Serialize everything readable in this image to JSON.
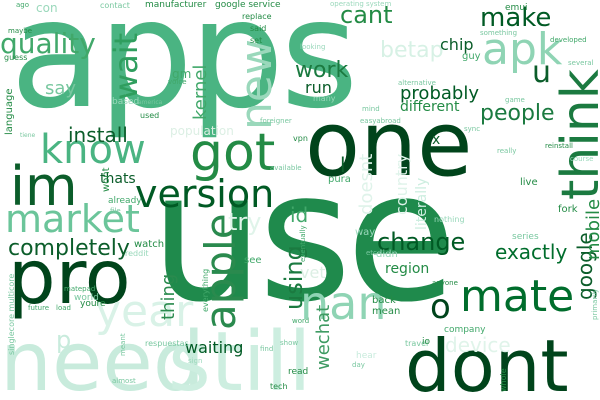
{
  "words": [
    {
      "text": "apps",
      "color": "#4ab482",
      "rot": false
    },
    {
      "text": "use",
      "color": "#1f8a4c",
      "rot": false
    },
    {
      "text": "one",
      "color": "#00441b",
      "rot": false
    },
    {
      "text": "need",
      "color": "#c8ebdc",
      "rot": false
    },
    {
      "text": "still",
      "color": "#cdeee0",
      "rot": false
    },
    {
      "text": "dont",
      "color": "#00441b",
      "rot": false
    },
    {
      "text": "pro",
      "color": "#00441b",
      "rot": false
    },
    {
      "text": "mate",
      "color": "#006d2c",
      "rot": false
    },
    {
      "text": "think",
      "color": "#1b7a40",
      "rot": true
    },
    {
      "text": "im",
      "color": "#0b5d2a",
      "rot": false
    },
    {
      "text": "got",
      "color": "#238b45",
      "rot": false
    },
    {
      "text": "version",
      "color": "#005a24",
      "rot": false
    },
    {
      "text": "know",
      "color": "#4ab482",
      "rot": false
    },
    {
      "text": "market",
      "color": "#6bc59a",
      "rot": false
    },
    {
      "text": "apple",
      "color": "#2a8a4e",
      "rot": true
    },
    {
      "text": "nan",
      "color": "#8fd4b4",
      "rot": false
    },
    {
      "text": "change",
      "color": "#005a24",
      "rot": false
    },
    {
      "text": "apk",
      "color": "#8fd4b4",
      "rot": false
    },
    {
      "text": "quality",
      "color": "#41a86a",
      "rot": false
    },
    {
      "text": "wait",
      "color": "#2f9e5e",
      "rot": true
    },
    {
      "text": "new",
      "color": "#9ad8bb",
      "rot": true
    },
    {
      "text": "make",
      "color": "#005a24",
      "rot": false
    },
    {
      "text": "cant",
      "color": "#238b45",
      "rot": false
    },
    {
      "text": "work",
      "color": "#1b7a40",
      "rot": false
    },
    {
      "text": "completely",
      "color": "#0b5d2a",
      "rot": false
    },
    {
      "text": "people",
      "color": "#1b7a40",
      "rot": false
    },
    {
      "text": "exactly",
      "color": "#006d2c",
      "rot": false
    },
    {
      "text": "install",
      "color": "#0b5d2a",
      "rot": false
    },
    {
      "text": "year",
      "color": "#d9f2e7",
      "rot": false
    },
    {
      "text": "using",
      "color": "#1b7a40",
      "rot": true
    },
    {
      "text": "google",
      "color": "#0b5d2a",
      "rot": true
    },
    {
      "text": "mobile",
      "color": "#238b45",
      "rot": true
    },
    {
      "text": "wechat",
      "color": "#3f9b63",
      "rot": true
    },
    {
      "text": "probably",
      "color": "#005a24",
      "rot": false
    },
    {
      "text": "different",
      "color": "#238b45",
      "rot": false
    },
    {
      "text": "waiting",
      "color": "#005a24",
      "rot": false
    },
    {
      "text": "betap",
      "color": "#d7f1e5",
      "rot": false
    },
    {
      "text": "device",
      "color": "#e0f4ea",
      "rot": false
    },
    {
      "text": "region",
      "color": "#238b45",
      "rot": false
    },
    {
      "text": "thing",
      "color": "#2a8a4e",
      "rot": true
    },
    {
      "text": "run",
      "color": "#0b5d2a",
      "rot": false
    },
    {
      "text": "say",
      "color": "#78c79f",
      "rot": false
    },
    {
      "text": "kernel",
      "color": "#41a86a",
      "rot": true
    },
    {
      "text": "chip",
      "color": "#0b5d2a",
      "rot": false
    },
    {
      "text": "thats",
      "color": "#0b5d2a",
      "rot": false
    },
    {
      "text": "try",
      "color": "#e0f4ea",
      "rot": false
    },
    {
      "text": "id",
      "color": "#41a86a",
      "rot": false
    },
    {
      "text": "u",
      "color": "#0b5d2a",
      "rot": false
    },
    {
      "text": "l",
      "color": "#0b5d2a",
      "rot": false
    },
    {
      "text": "o",
      "color": "#00441b",
      "rot": false
    },
    {
      "text": "x",
      "color": "#0b5d2a",
      "rot": false
    },
    {
      "text": "population",
      "color": "#dcefe4",
      "rot": false
    },
    {
      "text": "nothing",
      "color": "#9ad8bb",
      "rot": false
    },
    {
      "text": "literally",
      "color": "#cdeee0",
      "rot": true
    },
    {
      "text": "country",
      "color": "#dff3ea",
      "rot": true
    },
    {
      "text": "doesnt",
      "color": "#dff3ea",
      "rot": true
    },
    {
      "text": "vet",
      "color": "#dcefe4",
      "rot": false
    },
    {
      "text": "gm",
      "color": "#41a86a",
      "rot": false
    },
    {
      "text": "emui",
      "color": "#238b45",
      "rot": false
    },
    {
      "text": "guy",
      "color": "#41a86a",
      "rot": false
    },
    {
      "text": "watch",
      "color": "#238b45",
      "rot": false
    },
    {
      "text": "see",
      "color": "#41a86a",
      "rot": false
    },
    {
      "text": "back",
      "color": "#238b45",
      "rot": false
    },
    {
      "text": "mean",
      "color": "#238b45",
      "rot": false
    },
    {
      "text": "pura",
      "color": "#41a86a",
      "rot": false
    },
    {
      "text": "fork",
      "color": "#238b45",
      "rot": false
    },
    {
      "text": "live",
      "color": "#238b45",
      "rot": false
    },
    {
      "text": "series",
      "color": "#78c79f",
      "rot": false
    },
    {
      "text": "wont",
      "color": "#238b45",
      "rot": true
    },
    {
      "text": "already",
      "color": "#41a86a",
      "rot": false
    },
    {
      "text": "world",
      "color": "#78c79f",
      "rot": false
    },
    {
      "text": "youre",
      "color": "#238b45",
      "rot": false
    },
    {
      "text": "read",
      "color": "#238b45",
      "rot": false
    },
    {
      "text": "company",
      "color": "#41a86a",
      "rot": false
    },
    {
      "text": "vpn",
      "color": "#238b45",
      "rot": false
    },
    {
      "text": "said",
      "color": "#238b45",
      "rot": false
    },
    {
      "text": "set",
      "color": "#238b45",
      "rot": false
    },
    {
      "text": "replace",
      "color": "#238b45",
      "rot": false
    },
    {
      "text": "google service",
      "color": "#238b45",
      "rot": false
    },
    {
      "text": "manufacturer",
      "color": "#238b45",
      "rot": false
    },
    {
      "text": "contact",
      "color": "#78c79f",
      "rot": false
    },
    {
      "text": "con",
      "color": "#9ad8bb",
      "rot": false
    },
    {
      "text": "maybe",
      "color": "#238b45",
      "rot": false
    },
    {
      "text": "guess",
      "color": "#238b45",
      "rot": false
    },
    {
      "text": "language",
      "color": "#238b45",
      "rot": true
    },
    {
      "text": "used",
      "color": "#238b45",
      "rot": false
    },
    {
      "text": "matepad",
      "color": "#41a86a",
      "rot": false
    },
    {
      "text": "singlecore multicore",
      "color": "#78c79f",
      "rot": true
    },
    {
      "text": "respuestas",
      "color": "#78c79f",
      "rot": false
    },
    {
      "text": "travel",
      "color": "#78c79f",
      "rot": false
    },
    {
      "text": "tech",
      "color": "#238b45",
      "rot": false
    },
    {
      "text": "io",
      "color": "#238b45",
      "rot": false
    },
    {
      "text": "whole",
      "color": "#238b45",
      "rot": true
    },
    {
      "text": "developed",
      "color": "#41a86a",
      "rot": false
    },
    {
      "text": "several",
      "color": "#78c79f",
      "rot": false
    },
    {
      "text": "sync",
      "color": "#78c79f",
      "rot": false
    },
    {
      "text": "really",
      "color": "#78c79f",
      "rot": false
    },
    {
      "text": "anyone",
      "color": "#238b45",
      "rot": false
    },
    {
      "text": "game",
      "color": "#78c79f",
      "rot": false
    },
    {
      "text": "easyabroad",
      "color": "#78c79f",
      "rot": false
    },
    {
      "text": "foreigner",
      "color": "#78c79f",
      "rot": false
    },
    {
      "text": "alternative",
      "color": "#78c79f",
      "rot": false
    },
    {
      "text": "operating system",
      "color": "#9ad8bb",
      "rot": false
    },
    {
      "text": "something",
      "color": "#78c79f",
      "rot": false
    },
    {
      "text": "looking",
      "color": "#9ad8bb",
      "rot": false
    },
    {
      "text": "many",
      "color": "#9ad8bb",
      "rot": false
    },
    {
      "text": "available",
      "color": "#78c79f",
      "rot": false
    },
    {
      "text": "reddit",
      "color": "#9ad8bb",
      "rot": false
    },
    {
      "text": "file",
      "color": "#78c79f",
      "rot": false
    },
    {
      "text": "sign",
      "color": "#9ad8bb",
      "rot": false
    },
    {
      "text": "find",
      "color": "#78c79f",
      "rot": false
    },
    {
      "text": "show",
      "color": "#78c79f",
      "rot": false
    },
    {
      "text": "almost",
      "color": "#78c79f",
      "rot": false
    },
    {
      "text": "day",
      "color": "#78c79f",
      "rot": false
    },
    {
      "text": "hear",
      "color": "#c8ebdc",
      "rot": false
    },
    {
      "text": "reinstall",
      "color": "#238b45",
      "rot": false
    },
    {
      "text": "course",
      "color": "#9ad8bb",
      "rot": false
    },
    {
      "text": "eventually",
      "color": "#41a86a",
      "rot": true
    },
    {
      "text": "primarily",
      "color": "#78c79f",
      "rot": true
    },
    {
      "text": "future",
      "color": "#41a86a",
      "rot": false
    },
    {
      "text": "load",
      "color": "#41a86a",
      "rot": false
    },
    {
      "text": "meant",
      "color": "#78c79f",
      "rot": true
    },
    {
      "text": "word",
      "color": "#41a86a",
      "rot": false
    },
    {
      "text": "etc",
      "color": "#78c79f",
      "rot": false
    },
    {
      "text": "didn",
      "color": "#9ad8bb",
      "rot": false
    },
    {
      "text": "based",
      "color": "#9ad8bb",
      "rot": false
    },
    {
      "text": "mind",
      "color": "#78c79f",
      "rot": false
    },
    {
      "text": "voice",
      "color": "#41a86a",
      "rot": false
    },
    {
      "text": "america",
      "color": "#78c79f",
      "rot": false
    },
    {
      "text": "ago",
      "color": "#41a86a",
      "rot": false
    },
    {
      "text": "tiene",
      "color": "#78c79f",
      "rot": false
    },
    {
      "text": "way",
      "color": "#9ad8bb",
      "rot": false
    },
    {
      "text": "everything",
      "color": "#41a86a",
      "rot": true
    },
    {
      "text": "p",
      "color": "#c8ebdc",
      "rot": false
    }
  ]
}
